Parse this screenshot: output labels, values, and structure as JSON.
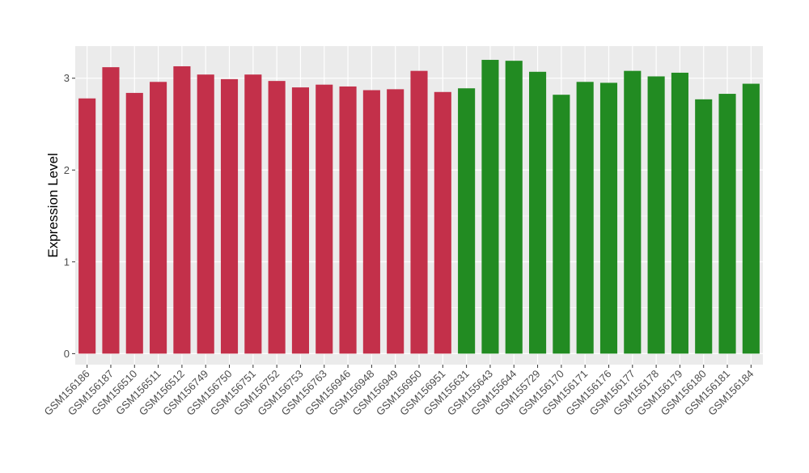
{
  "chart_data": {
    "type": "bar",
    "title": "",
    "xlabel": "",
    "ylabel": "Expression Level",
    "ylim": [
      -0.12,
      3.35
    ],
    "yticks": [
      0,
      1,
      2,
      3
    ],
    "grid": true,
    "legend": "none",
    "categories": [
      "GSM156186",
      "GSM156187",
      "GSM156510",
      "GSM156511",
      "GSM156512",
      "GSM156749",
      "GSM156750",
      "GSM156751",
      "GSM156752",
      "GSM156753",
      "GSM156763",
      "GSM156946",
      "GSM156948",
      "GSM156949",
      "GSM156950",
      "GSM156951",
      "GSM155631",
      "GSM155643",
      "GSM155644",
      "GSM155729",
      "GSM156170",
      "GSM156171",
      "GSM156176",
      "GSM156177",
      "GSM156178",
      "GSM156179",
      "GSM156180",
      "GSM156181",
      "GSM156184"
    ],
    "values": [
      2.78,
      3.12,
      2.84,
      2.96,
      3.13,
      3.04,
      2.99,
      3.04,
      2.97,
      2.9,
      2.93,
      2.91,
      2.87,
      2.88,
      3.08,
      2.85,
      2.89,
      3.2,
      3.19,
      3.07,
      2.82,
      2.96,
      2.95,
      3.08,
      3.02,
      3.06,
      2.77,
      2.83,
      2.94
    ],
    "bar_colors": [
      "#c3304a",
      "#c3304a",
      "#c3304a",
      "#c3304a",
      "#c3304a",
      "#c3304a",
      "#c3304a",
      "#c3304a",
      "#c3304a",
      "#c3304a",
      "#c3304a",
      "#c3304a",
      "#c3304a",
      "#c3304a",
      "#c3304a",
      "#c3304a",
      "#228b22",
      "#228b22",
      "#228b22",
      "#228b22",
      "#228b22",
      "#228b22",
      "#228b22",
      "#228b22",
      "#228b22",
      "#228b22",
      "#228b22",
      "#228b22",
      "#228b22"
    ],
    "panel_background": "#ebebeb",
    "gridline_color": "#ffffff"
  }
}
